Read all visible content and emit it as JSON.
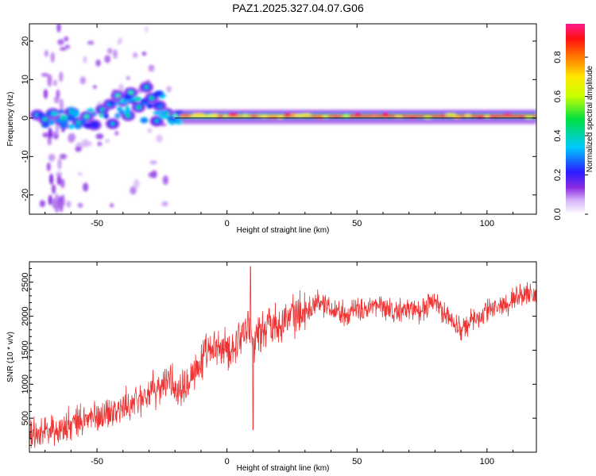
{
  "title": "PAZ1.2025.327.04.07.G06",
  "colors": {
    "signal": "#ee3333",
    "axis": "#000000",
    "background": "#ffffff"
  },
  "chart_data": [
    {
      "type": "heatmap",
      "name": "spectrogram",
      "xlabel": "Height of straight line (km)",
      "ylabel": "Frequency (Hz)",
      "xlim": [
        -76,
        119
      ],
      "ylim": [
        -25,
        24.5
      ],
      "xticks": [
        "-50",
        "0",
        "50",
        "100"
      ],
      "xtick_values": [
        -50,
        0,
        50,
        100
      ],
      "yticks": [
        "20",
        "10",
        "0",
        "-10",
        "-20"
      ],
      "ytick_values": [
        20,
        10,
        0,
        -10,
        -20
      ],
      "colorbar": {
        "label": "Normalized spectral amplitude",
        "ticks": [
          "0.0",
          "0.2",
          "0.4",
          "0.6",
          "0.8"
        ],
        "tick_values": [
          0.0,
          0.2,
          0.4,
          0.6,
          0.8
        ],
        "range": [
          0,
          0.97
        ]
      },
      "ridge_frequency_hz": 0.5,
      "blobs": [
        {
          "x": -73,
          "f": 0.8,
          "a": 0.45
        },
        {
          "x": -70,
          "f": -0.3,
          "a": 0.5
        },
        {
          "x": -67,
          "f": 1.2,
          "a": 0.55
        },
        {
          "x": -64,
          "f": -0.6,
          "a": 0.5
        },
        {
          "x": -60,
          "f": 1.5,
          "a": 0.45
        },
        {
          "x": -57,
          "f": -1.2,
          "a": 0.5
        },
        {
          "x": -54,
          "f": 0.4,
          "a": 0.55
        },
        {
          "x": -51,
          "f": -1.8,
          "a": 0.4
        },
        {
          "x": -48,
          "f": 2.2,
          "a": 0.45
        },
        {
          "x": -45,
          "f": 3.6,
          "a": 0.5
        },
        {
          "x": -42,
          "f": 5.8,
          "a": 0.55
        },
        {
          "x": -40,
          "f": 4.4,
          "a": 0.6
        },
        {
          "x": -37,
          "f": 6.6,
          "a": 0.55
        },
        {
          "x": -34,
          "f": 2.8,
          "a": 0.5
        },
        {
          "x": -31,
          "f": 8.0,
          "a": 0.45
        },
        {
          "x": -29,
          "f": 5.2,
          "a": 0.5
        },
        {
          "x": -26,
          "f": 3.2,
          "a": 0.45
        },
        {
          "x": -23,
          "f": 1.2,
          "a": 0.5
        },
        {
          "x": -20,
          "f": 0.5,
          "a": 0.6
        },
        {
          "x": -44,
          "f": -1.5,
          "a": 0.4
        },
        {
          "x": -38,
          "f": 0.6,
          "a": 0.5
        },
        {
          "x": -27,
          "f": -0.8,
          "a": 0.4
        }
      ],
      "ridge_segments": [
        {
          "x0": -18,
          "x1": 0,
          "a": 0.7
        },
        {
          "x0": 0,
          "x1": 22,
          "a": 0.78
        },
        {
          "x0": 22,
          "x1": 45,
          "a": 0.85
        },
        {
          "x0": 45,
          "x1": 75,
          "a": 0.9
        },
        {
          "x0": 75,
          "x1": 119,
          "a": 0.92
        }
      ]
    },
    {
      "type": "line",
      "name": "snr",
      "xlabel": "Height of straight line (km)",
      "ylabel": "SNR (10 * v/v)",
      "xlim": [
        -76,
        119
      ],
      "ylim": [
        0,
        2800
      ],
      "xticks": [
        "-50",
        "0",
        "50",
        "100"
      ],
      "xtick_values": [
        -50,
        0,
        50,
        100
      ],
      "yticks": [
        "500",
        "1000",
        "1500",
        "2000",
        "2500"
      ],
      "ytick_values": [
        500,
        1000,
        1500,
        2000,
        2500
      ],
      "series": [
        {
          "name": "SNR",
          "x": [
            -76,
            -70,
            -65,
            -60,
            -55,
            -50,
            -45,
            -40,
            -35,
            -30,
            -25,
            -22,
            -20,
            -18,
            -15,
            -12,
            -10,
            -8,
            -5,
            -3,
            0,
            3,
            5,
            8,
            10,
            12,
            15,
            18,
            20,
            25,
            30,
            35,
            40,
            45,
            50,
            55,
            60,
            65,
            70,
            75,
            78,
            80,
            85,
            90,
            95,
            100,
            105,
            110,
            115,
            119
          ],
          "values": [
            250,
            330,
            320,
            390,
            470,
            520,
            600,
            640,
            750,
            880,
            950,
            1130,
            900,
            1000,
            1100,
            1230,
            1320,
            1430,
            1480,
            1550,
            1480,
            1580,
            1700,
            1880,
            1640,
            1760,
            1840,
            1910,
            1930,
            2000,
            2070,
            2240,
            2120,
            2050,
            2080,
            2130,
            2150,
            2050,
            2120,
            2060,
            2220,
            2180,
            2000,
            1800,
            1950,
            2070,
            2150,
            2250,
            2350,
            2300
          ],
          "noise_amplitude": 230
        }
      ],
      "annotations": [
        {
          "x": 9,
          "value": 2730,
          "note": "spike max"
        },
        {
          "x": 10,
          "value": 330,
          "note": "spike min"
        }
      ]
    }
  ]
}
